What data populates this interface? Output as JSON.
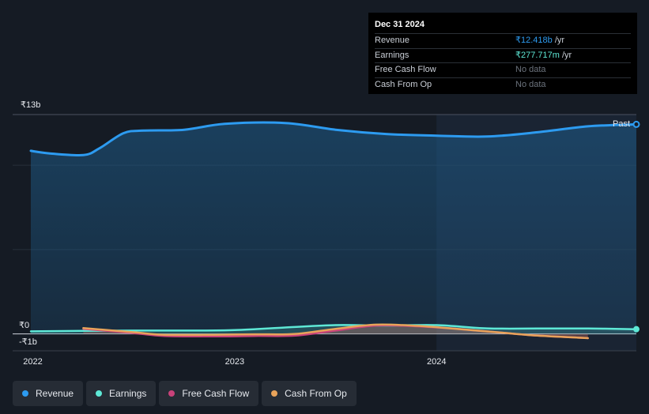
{
  "tooltip": {
    "date": "Dec 31 2024",
    "rows": [
      {
        "label": "Revenue",
        "value": "₹12.418b",
        "unit": " /yr"
      },
      {
        "label": "Earnings",
        "value": "₹277.717m",
        "unit": " /yr"
      },
      {
        "label": "Free Cash Flow",
        "value": "No data"
      },
      {
        "label": "Cash From Op",
        "value": "No data"
      }
    ]
  },
  "past_label": "Past",
  "legend": [
    {
      "label": "Revenue",
      "color": "#2d9bf0"
    },
    {
      "label": "Earnings",
      "color": "#5ee8d6"
    },
    {
      "label": "Free Cash Flow",
      "color": "#c9427a"
    },
    {
      "label": "Cash From Op",
      "color": "#e8a35a"
    }
  ],
  "chart_data": {
    "type": "line",
    "y_tick_labels": [
      "₹13b",
      "₹0",
      "-₹1b"
    ],
    "x_tick_labels": [
      "2022",
      "2023",
      "2024"
    ],
    "ylim": [
      -1,
      13
    ],
    "xlim": [
      2021.9,
      2024.99
    ],
    "grid": true,
    "series": [
      {
        "name": "Revenue",
        "color": "#2d9bf0",
        "x": [
          2021.99,
          2022.08,
          2022.25,
          2022.33,
          2022.45,
          2022.55,
          2022.75,
          2022.95,
          2023.25,
          2023.5,
          2023.75,
          2024.0,
          2024.25,
          2024.5,
          2024.75,
          2024.99
        ],
        "y": [
          10.85,
          10.7,
          10.6,
          11.0,
          11.9,
          12.05,
          12.1,
          12.45,
          12.5,
          12.1,
          11.85,
          11.75,
          11.7,
          11.95,
          12.3,
          12.42
        ]
      },
      {
        "name": "Earnings",
        "color": "#5ee8d6",
        "x": [
          2021.99,
          2022.25,
          2022.5,
          2022.75,
          2023.0,
          2023.25,
          2023.5,
          2023.75,
          2024.0,
          2024.25,
          2024.5,
          2024.75,
          2024.99
        ],
        "y": [
          0.15,
          0.18,
          0.2,
          0.2,
          0.23,
          0.38,
          0.52,
          0.5,
          0.52,
          0.33,
          0.32,
          0.32,
          0.28
        ]
      },
      {
        "name": "Free Cash Flow",
        "color": "#c9427a",
        "x": [
          2022.25,
          2022.5,
          2022.65,
          2022.9,
          2023.1,
          2023.3,
          2023.5,
          2023.7,
          2023.9,
          2024.1,
          2024.3,
          2024.5,
          2024.75
        ],
        "y": [
          0.3,
          0.05,
          -0.12,
          -0.15,
          -0.12,
          -0.1,
          0.2,
          0.5,
          0.45,
          0.3,
          0.1,
          -0.1,
          -0.25
        ]
      },
      {
        "name": "Cash From Op",
        "color": "#e8a35a",
        "x": [
          2022.25,
          2022.5,
          2022.65,
          2022.9,
          2023.1,
          2023.3,
          2023.5,
          2023.7,
          2023.9,
          2024.1,
          2024.3,
          2024.5,
          2024.75
        ],
        "y": [
          0.35,
          0.1,
          -0.05,
          -0.05,
          -0.02,
          0.0,
          0.3,
          0.55,
          0.48,
          0.3,
          0.1,
          -0.1,
          -0.25
        ]
      }
    ]
  }
}
